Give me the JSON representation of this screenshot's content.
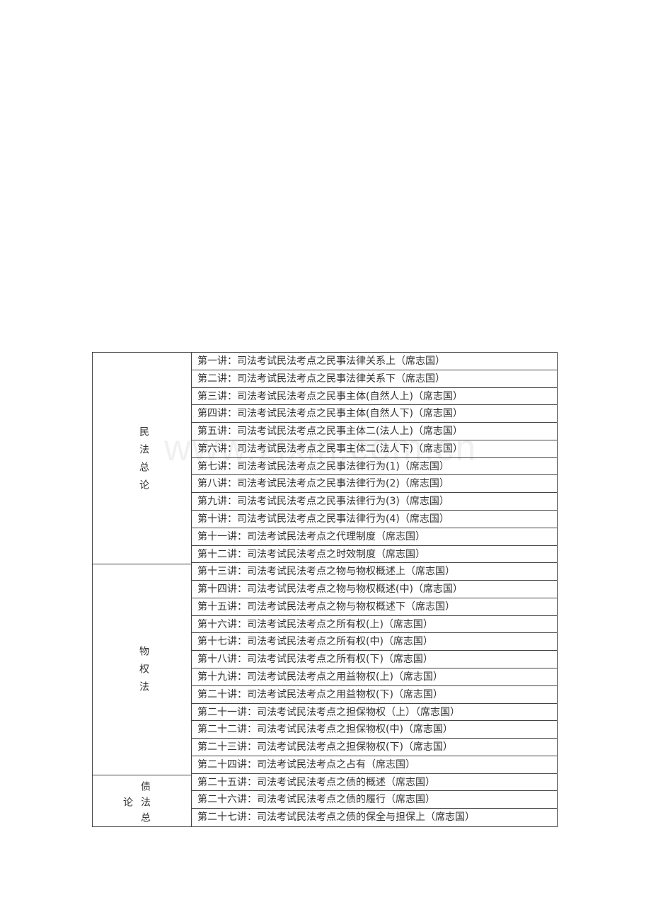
{
  "groups": [
    {
      "label": "民法总论",
      "chars": [
        "民",
        "法",
        "总",
        "论"
      ]
    },
    {
      "label": "物权法",
      "chars": [
        "物",
        "权",
        "法"
      ]
    },
    {
      "label": "债法总论",
      "chars": [
        "债",
        "论",
        "法",
        "总"
      ]
    }
  ],
  "rows": [
    "第一讲：司法考试民法考点之民事法律关系上（席志国）",
    "第二讲：司法考试民法考点之民事法律关系下（席志国）",
    "第三讲：司法考试民法考点之民事主体(自然人上)（席志国）",
    "第四讲：司法考试民法考点之民事主体(自然人下)（席志国）",
    "第五讲：司法考试民法考点之民事主体二(法人上)（席志国）",
    "第六讲：司法考试民法考点之民事主体二(法人下)（席志国）",
    "第七讲：司法考试民法考点之民事法律行为(1)（席志国）",
    "第八讲：司法考试民法考点之民事法律行为(2)（席志国）",
    "第九讲：司法考试民法考点之民事法律行为(3)（席志国）",
    "第十讲：司法考试民法考点之民事法律行为(4)（席志国）",
    "第十一讲：司法考试民法考点之代理制度（席志国）",
    "第十二讲：司法考试民法考点之时效制度（席志国）",
    "第十三讲：司法考试民法考点之物与物权概述上（席志国）",
    "第十四讲：司法考试民法考点之物与物权概述(中)（席志国）",
    "第十五讲：司法考试民法考点之物与物权概述下（席志国）",
    "第十六讲：司法考试民法考点之所有权(上)（席志国）",
    "第十七讲：司法考试民法考点之所有权(中)（席志国）",
    "第十八讲：司法考试民法考点之所有权(下)（席志国）",
    "第十九讲：司法考试民法考点之用益物权(上)（席志国）",
    "第二十讲：司法考试民法考点之用益物权(下)（席志国）",
    "第二十一讲：司法考试民法考点之担保物权（上）（席志国）",
    "第二十二讲：司法考试民法考点之担保物权(中)（席志国）",
    "第二十三讲：司法考试民法考点之担保物权(下)（席志国）",
    "第二十四讲：司法考试民法考点之占有（席志国）",
    "第二十五讲：司法考试民法考点之债的概述（席志国）",
    "第二十六讲：司法考试民法考点之债的履行（席志国）",
    "第二十七讲：司法考试民法考点之债的保全与担保上（席志国）"
  ],
  "watermark": "www.zixin.com.cn"
}
